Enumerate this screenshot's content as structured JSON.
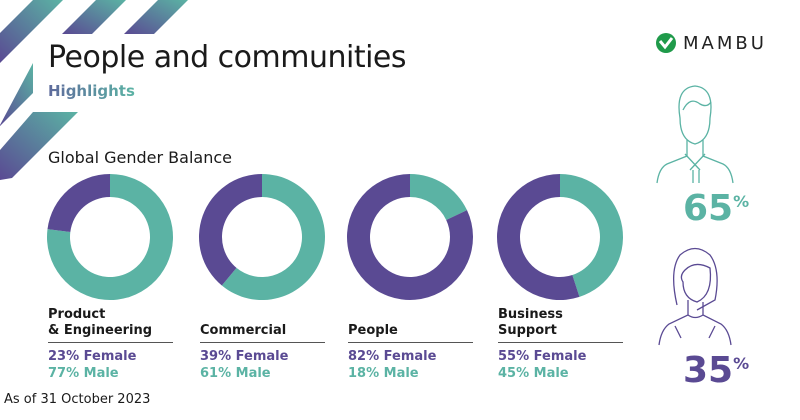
{
  "header": {
    "title": "People and communities",
    "subtitle": "Highlights"
  },
  "brand": {
    "logo_text": "MAMBU"
  },
  "colors": {
    "female": "#5a4a93",
    "male": "#5bb3a4"
  },
  "footer": {
    "as_of": "As of 31 October 2023"
  },
  "overall": {
    "male_value": "65",
    "female_value": "35",
    "unit": "%",
    "male_icon": "man-icon",
    "female_icon": "woman-icon"
  },
  "chart_data": {
    "type": "pie",
    "title": "Global Gender Balance",
    "series_names": [
      "Female",
      "Male"
    ],
    "panels": [
      {
        "label": "Product & Engineering",
        "female": 23,
        "male": 77,
        "female_text": "23% Female",
        "male_text": "77% Male"
      },
      {
        "label": "Commercial",
        "female": 39,
        "male": 61,
        "female_text": "39% Female",
        "male_text": "61% Male"
      },
      {
        "label": "People",
        "female": 82,
        "male": 18,
        "female_text": "82% Female",
        "male_text": "18% Male"
      },
      {
        "label": "Business Support",
        "female": 55,
        "male": 45,
        "female_text": "55% Female",
        "male_text": "45% Male"
      }
    ]
  }
}
